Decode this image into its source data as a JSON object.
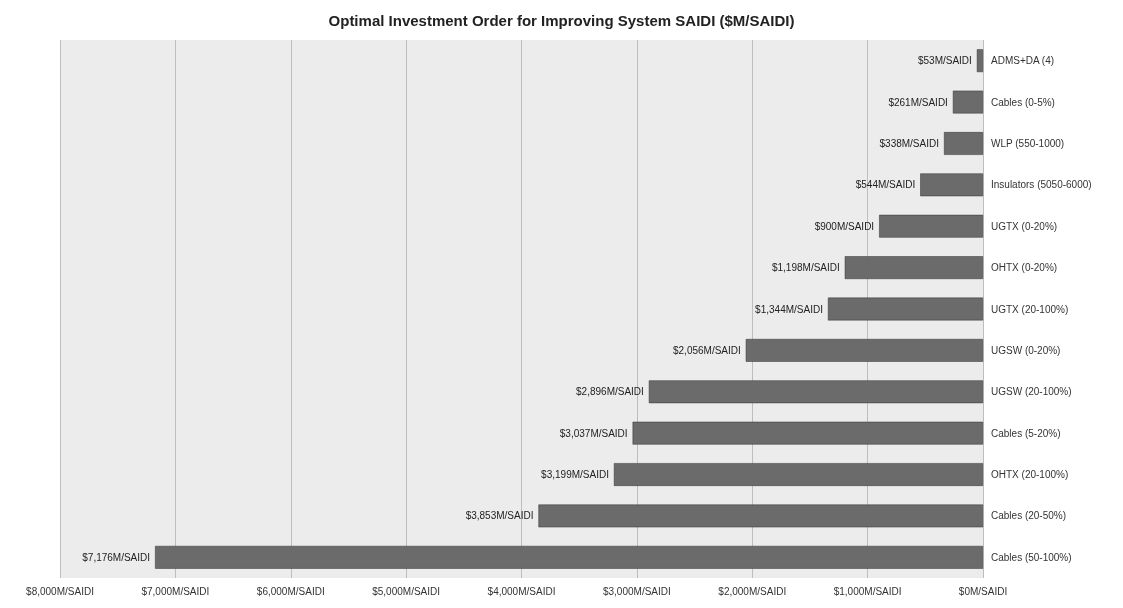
{
  "chart_data": {
    "type": "bar",
    "orientation": "horizontal",
    "title": "Optimal Investment Order for Improving System SAIDI ($M/SAIDI)",
    "categories": [
      "ADMS+DA (4)",
      "Cables (0-5%)",
      "WLP (550-1000)",
      "Insulators (5050-6000)",
      "UGTX (0-20%)",
      "OHTX (0-20%)",
      "UGTX (20-100%)",
      "UGSW (0-20%)",
      "UGSW (20-100%)",
      "Cables (5-20%)",
      "OHTX (20-100%)",
      "Cables (20-50%)",
      "Cables (50-100%)"
    ],
    "values": [
      53,
      261,
      338,
      544,
      900,
      1198,
      1344,
      2056,
      2896,
      3037,
      3199,
      3853,
      7176
    ],
    "value_labels": [
      "$53M/SAIDI",
      "$261M/SAIDI",
      "$338M/SAIDI",
      "$544M/SAIDI",
      "$900M/SAIDI",
      "$1,198M/SAIDI",
      "$1,344M/SAIDI",
      "$2,056M/SAIDI",
      "$2,896M/SAIDI",
      "$3,037M/SAIDI",
      "$3,199M/SAIDI",
      "$3,853M/SAIDI",
      "$7,176M/SAIDI"
    ],
    "color": "#6b6b6b",
    "xlim": [
      8000,
      0
    ],
    "xticks": [
      {
        "value": 8000,
        "label": "$8,000M/SAIDI"
      },
      {
        "value": 7000,
        "label": "$7,000M/SAIDI"
      },
      {
        "value": 6000,
        "label": "$6,000M/SAIDI"
      },
      {
        "value": 5000,
        "label": "$5,000M/SAIDI"
      },
      {
        "value": 4000,
        "label": "$4,000M/SAIDI"
      },
      {
        "value": 3000,
        "label": "$3,000M/SAIDI"
      },
      {
        "value": 2000,
        "label": "$2,000M/SAIDI"
      },
      {
        "value": 1000,
        "label": "$1,000M/SAIDI"
      },
      {
        "value": 0,
        "label": "$0M/SAIDI"
      }
    ],
    "grid": "x"
  }
}
